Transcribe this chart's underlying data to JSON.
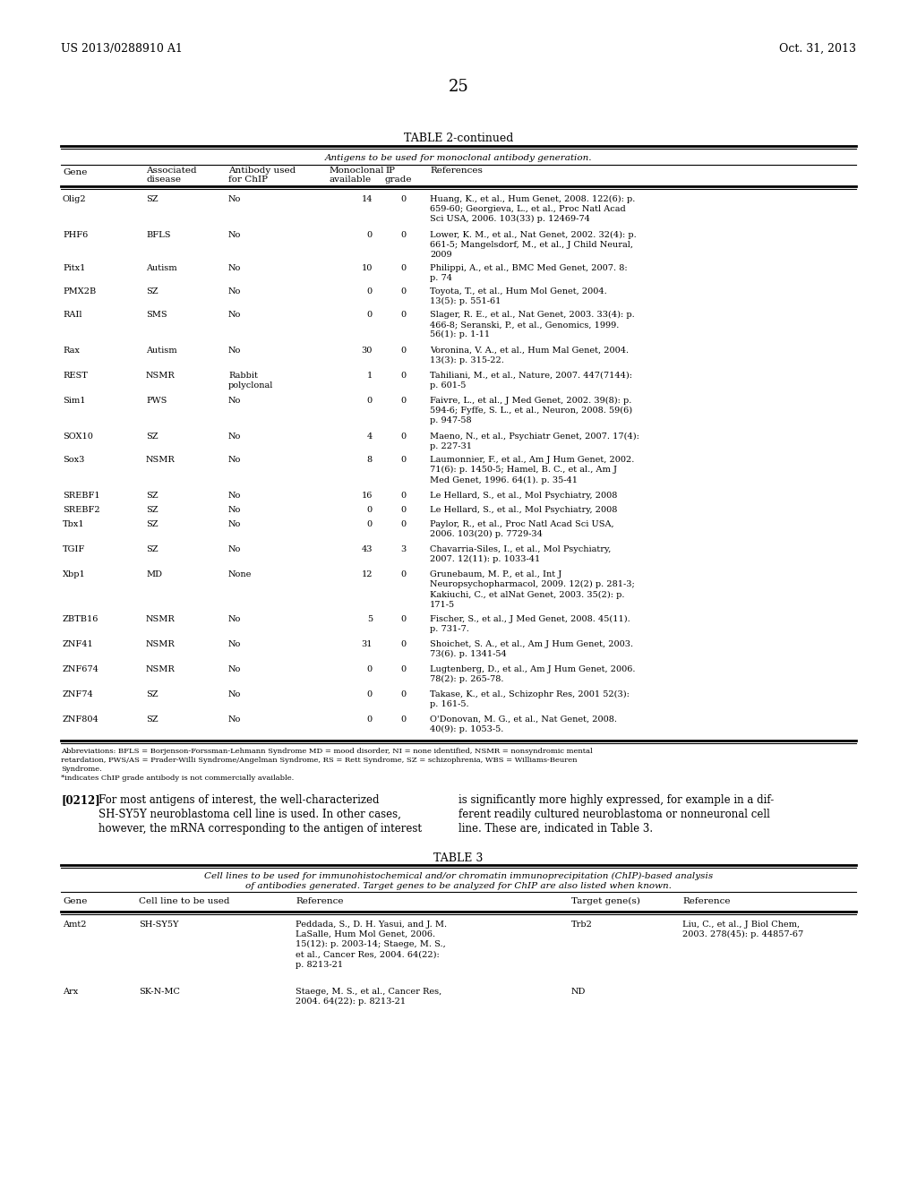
{
  "header_left": "US 2013/0288910 A1",
  "header_right": "Oct. 31, 2013",
  "page_number": "25",
  "table2_title": "TABLE 2-continued",
  "table2_subtitle": "Antigens to be used for monoclonal antibody generation.",
  "table2_rows": [
    [
      "Olig2",
      "SZ",
      "No",
      "14",
      "0",
      "Huang, K., et al., Hum Genet, 2008. 122(6): p.\n659-60; Georgieva, L., et al., Proc Natl Acad\nSci USA, 2006. 103(33) p. 12469-74"
    ],
    [
      "PHF6",
      "BFLS",
      "No",
      "0",
      "0",
      "Lower, K. M., et al., Nat Genet, 2002. 32(4): p.\n661-5; Mangelsdorf, M., et al., J Child Neural,\n2009"
    ],
    [
      "Pitx1",
      "Autism",
      "No",
      "10",
      "0",
      "Philippi, A., et al., BMC Med Genet, 2007. 8:\np. 74"
    ],
    [
      "PMX2B",
      "SZ",
      "No",
      "0",
      "0",
      "Toyota, T., et al., Hum Mol Genet, 2004.\n13(5): p. 551-61"
    ],
    [
      "RAIl",
      "SMS",
      "No",
      "0",
      "0",
      "Slager, R. E., et al., Nat Genet, 2003. 33(4): p.\n466-8; Seranski, P., et al., Genomics, 1999.\n56(1): p. 1-11"
    ],
    [
      "Rax",
      "Autism",
      "No",
      "30",
      "0",
      "Voronina, V. A., et al., Hum Mal Genet, 2004.\n13(3): p. 315-22."
    ],
    [
      "REST",
      "NSMR",
      "Rabbit\npolyclonal",
      "1",
      "0",
      "Tahiliani, M., et al., Nature, 2007. 447(7144):\np. 601-5"
    ],
    [
      "Sim1",
      "PWS",
      "No",
      "0",
      "0",
      "Faivre, L., et al., J Med Genet, 2002. 39(8): p.\n594-6; Fyffe, S. L., et al., Neuron, 2008. 59(6)\np. 947-58"
    ],
    [
      "SOX10",
      "SZ",
      "No",
      "4",
      "0",
      "Maeno, N., et al., Psychiatr Genet, 2007. 17(4):\np. 227-31"
    ],
    [
      "Sox3",
      "NSMR",
      "No",
      "8",
      "0",
      "Laumonnier, F., et al., Am J Hum Genet, 2002.\n71(6): p. 1450-5; Hamel, B. C., et al., Am J\nMed Genet, 1996. 64(1). p. 35-41"
    ],
    [
      "SREBF1",
      "SZ",
      "No",
      "16",
      "0",
      "Le Hellard, S., et al., Mol Psychiatry, 2008"
    ],
    [
      "SREBF2",
      "SZ",
      "No",
      "0",
      "0",
      "Le Hellard, S., et al., Mol Psychiatry, 2008"
    ],
    [
      "Tbx1",
      "SZ",
      "No",
      "0",
      "0",
      "Paylor, R., et al., Proc Natl Acad Sci USA,\n2006. 103(20) p. 7729-34"
    ],
    [
      "TGIF",
      "SZ",
      "No",
      "43",
      "3",
      "Chavarria-Siles, I., et al., Mol Psychiatry,\n2007. 12(11): p. 1033-41"
    ],
    [
      "Xbp1",
      "MD",
      "None",
      "12",
      "0",
      "Grunebaum, M. P., et al., Int J\nNeuropsychopharmacol, 2009. 12(2) p. 281-3;\nKakiuchi, C., et alNat Genet, 2003. 35(2): p.\n171-5"
    ],
    [
      "ZBTB16",
      "NSMR",
      "No",
      "5",
      "0",
      "Fischer, S., et al., J Med Genet, 2008. 45(11).\np. 731-7."
    ],
    [
      "ZNF41",
      "NSMR",
      "No",
      "31",
      "0",
      "Shoichet, S. A., et al., Am J Hum Genet, 2003.\n73(6). p. 1341-54"
    ],
    [
      "ZNF674",
      "NSMR",
      "No",
      "0",
      "0",
      "Lugtenberg, D., et al., Am J Hum Genet, 2006.\n78(2): p. 265-78."
    ],
    [
      "ZNF74",
      "SZ",
      "No",
      "0",
      "0",
      "Takase, K., et al., Schizophr Res, 2001 52(3):\np. 161-5."
    ],
    [
      "ZNF804",
      "SZ",
      "No",
      "0",
      "0",
      "O'Donovan, M. G., et al., Nat Genet, 2008.\n40(9): p. 1053-5."
    ]
  ],
  "table2_footnote_line1": "Abbreviations: BFLS = Borjenson-Forssman-Lehmann Syndrome MD = mood disorder, NI = none identified, NSMR = nonsyndromic mental",
  "table2_footnote_line2": "retardation, PWS/AS = Prader-Willi Syndrome/Angelman Syndrome, RS = Rett Syndrome, SZ = schizophrenia, WBS = Williams-Beuren",
  "table2_footnote_line3": "Syndrome.",
  "table2_footnote_line4": "*indicates ChIP grade antibody is not commercially available.",
  "para_num": "[0212]",
  "para_text_left": "For most antigens of interest, the well-characterized\nSH-SY5Y neuroblastoma cell line is used. In other cases,\nhowever, the mRNA corresponding to the antigen of interest",
  "para_text_right": "is significantly more highly expressed, for example in a dif-\nferent readily cultured neuroblastoma or nonneuronal cell\nline. These are, indicated in Table 3.",
  "table3_title": "TABLE 3",
  "table3_subtitle_line1": "Cell lines to be used for immunohistochemical and/or chromatin immunoprecipitation (ChIP)-based analysis",
  "table3_subtitle_line2": "of antibodies generated. Target genes to be analyzed for ChIP are also listed when known.",
  "table3_rows": [
    [
      "Amt2",
      "SH-SY5Y",
      "Peddada, S., D. H. Yasui, and J. M.\nLaSalle, Hum Mol Genet, 2006.\n15(12): p. 2003-14; Staege, M. S.,\net al., Cancer Res, 2004. 64(22):\np. 8213-21",
      "Trb2",
      "Liu, C., et al., J Biol Chem,\n2003. 278(45): p. 44857-67"
    ],
    [
      "Arx",
      "SK-N-MC",
      "Staege, M. S., et al., Cancer Res,\n2004. 64(22): p. 8213-21",
      "ND",
      ""
    ]
  ],
  "bg_color": "#ffffff",
  "text_color": "#000000"
}
